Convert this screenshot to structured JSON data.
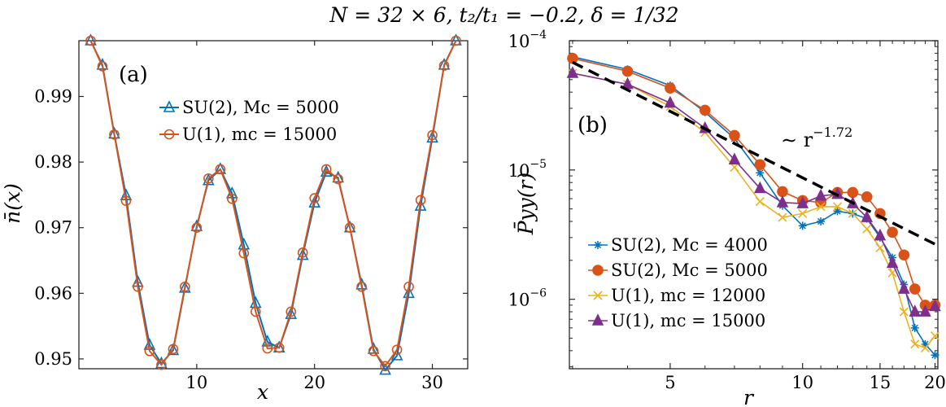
{
  "title": "N = 32 × 6, t₂/t₁ = −0.2, δ = 1/32",
  "chart_data": [
    {
      "type": "line",
      "panel_label": "(a)",
      "xlabel": "x",
      "ylabel": "n̄(x)",
      "xlim": [
        0,
        33
      ],
      "ylim": [
        0.9485,
        0.9985
      ],
      "xticks": [
        10,
        20,
        30
      ],
      "yticks": [
        0.95,
        0.96,
        0.97,
        0.98,
        0.99
      ],
      "ytick_labels": [
        "0.95",
        "0.96",
        "0.97",
        "0.98",
        "0.99"
      ],
      "grid": false,
      "legend_position": "top-center",
      "series": [
        {
          "name": "SU(2), Mc = 5000",
          "color": "#0072BD",
          "marker": "triangle",
          "x": [
            1,
            2,
            3,
            4,
            5,
            6,
            7,
            8,
            9,
            10,
            11,
            12,
            13,
            14,
            15,
            16,
            17,
            18,
            19,
            20,
            21,
            22,
            23,
            24,
            25,
            26,
            27,
            28,
            29,
            30,
            31,
            32
          ],
          "y": [
            0.9985,
            0.9948,
            0.9843,
            0.9749,
            0.9617,
            0.9521,
            0.9493,
            0.9513,
            0.9608,
            0.9702,
            0.9772,
            0.9789,
            0.9752,
            0.9674,
            0.9585,
            0.9526,
            0.9517,
            0.9568,
            0.9658,
            0.9738,
            0.9785,
            0.9776,
            0.97,
            0.9613,
            0.9515,
            0.9483,
            0.9505,
            0.96,
            0.9733,
            0.9837,
            0.9948,
            0.9985
          ]
        },
        {
          "name": "U(1), mc = 15000",
          "color": "#D95319",
          "marker": "circle",
          "x": [
            1,
            2,
            3,
            4,
            5,
            6,
            7,
            8,
            9,
            10,
            11,
            12,
            13,
            14,
            15,
            16,
            17,
            18,
            19,
            20,
            21,
            22,
            23,
            24,
            25,
            26,
            27,
            28,
            29,
            30,
            31,
            32
          ],
          "y": [
            0.9985,
            0.9946,
            0.9842,
            0.9741,
            0.961,
            0.9512,
            0.9491,
            0.9515,
            0.961,
            0.97,
            0.9775,
            0.9789,
            0.9744,
            0.9661,
            0.9572,
            0.9516,
            0.9517,
            0.9572,
            0.9662,
            0.9745,
            0.9789,
            0.9774,
            0.97,
            0.961,
            0.9512,
            0.9489,
            0.9514,
            0.961,
            0.9742,
            0.9841,
            0.9947,
            0.9985
          ]
        }
      ]
    },
    {
      "type": "line",
      "panel_label": "(b)",
      "xlabel": "r",
      "ylabel": "P̄yy(r)",
      "xscale": "log",
      "yscale": "log",
      "xlim": [
        2.95,
        20.3
      ],
      "ylim": [
        2.9e-07,
        0.0001
      ],
      "xticks": [
        5,
        10,
        15,
        20
      ],
      "yticks": [
        1e-06,
        1e-05,
        0.0001
      ],
      "ytick_labels": [
        [
          "10",
          "−6"
        ],
        [
          "10",
          "−5"
        ],
        [
          "10",
          "−4"
        ]
      ],
      "grid": false,
      "legend_position": "bottom-left",
      "annotation": "∼ r",
      "annotation_exponent": "−1.72",
      "fit_line": {
        "label": "∼ r^−1.72",
        "color": "#000000",
        "style": "dashed",
        "exponent": -1.72,
        "x": [
          3,
          20.3
        ],
        "y": [
          6.8e-05,
          2.6e-06
        ]
      },
      "series": [
        {
          "name": "SU(2), Mc = 4000",
          "color": "#0072BD",
          "marker": "star",
          "x": [
            3,
            4,
            5,
            6,
            7,
            8,
            9,
            10,
            11,
            12,
            13,
            14,
            15,
            16,
            17,
            18,
            19,
            20
          ],
          "y": [
            7.5e-05,
            6e-05,
            4.5e-05,
            2.8e-05,
            1.75e-05,
            9.5e-06,
            5.3e-06,
            3.7e-06,
            4e-06,
            4.8e-06,
            4.6e-06,
            4.2e-06,
            3e-06,
            2.1e-06,
            1.3e-06,
            6e-07,
            4.5e-07,
            3.7e-07
          ]
        },
        {
          "name": "SU(2), Mc = 5000",
          "color": "#D95319",
          "marker": "circle-filled",
          "x": [
            3,
            4,
            5,
            6,
            7,
            8,
            9,
            10,
            11,
            12,
            13,
            14,
            15,
            16,
            17,
            18,
            19,
            20
          ],
          "y": [
            7.3e-05,
            5.8e-05,
            4.3e-05,
            2.9e-05,
            1.85e-05,
            1.1e-05,
            6.8e-06,
            5.8e-06,
            5.6e-06,
            6.7e-06,
            6.7e-06,
            6.2e-06,
            4.6e-06,
            3.3e-06,
            2.2e-06,
            1.2e-06,
            9e-07,
            9e-07
          ]
        },
        {
          "name": "U(1), mc = 12000",
          "color": "#EDB120",
          "marker": "cross",
          "x": [
            3,
            4,
            5,
            6,
            7,
            8,
            9,
            10,
            11,
            12,
            13,
            14,
            15,
            16,
            17,
            18,
            19,
            20
          ],
          "y": [
            5.6e-05,
            4.6e-05,
            3.1e-05,
            1.95e-05,
            1.05e-05,
            5.7e-06,
            4.3e-06,
            4.6e-06,
            5.2e-06,
            5.2e-06,
            4.6e-06,
            3.5e-06,
            2.5e-06,
            1.6e-06,
            8e-07,
            4.5e-07,
            4.2e-07,
            5.2e-07
          ]
        },
        {
          "name": "U(1), mc = 15000",
          "color": "#7E2F8E",
          "marker": "triangle-filled",
          "x": [
            3,
            4,
            5,
            6,
            7,
            8,
            9,
            10,
            11,
            12,
            13,
            14,
            15,
            16,
            17,
            18,
            19,
            20
          ],
          "y": [
            5.6e-05,
            4.6e-05,
            3.3e-05,
            2.1e-05,
            1.2e-05,
            7.2e-06,
            5.6e-06,
            5.5e-06,
            6.3e-06,
            6.5e-06,
            5.5e-06,
            4.3e-06,
            3.1e-06,
            1.9e-06,
            1.2e-06,
            8e-07,
            8e-07,
            8.8e-07
          ]
        }
      ]
    }
  ]
}
